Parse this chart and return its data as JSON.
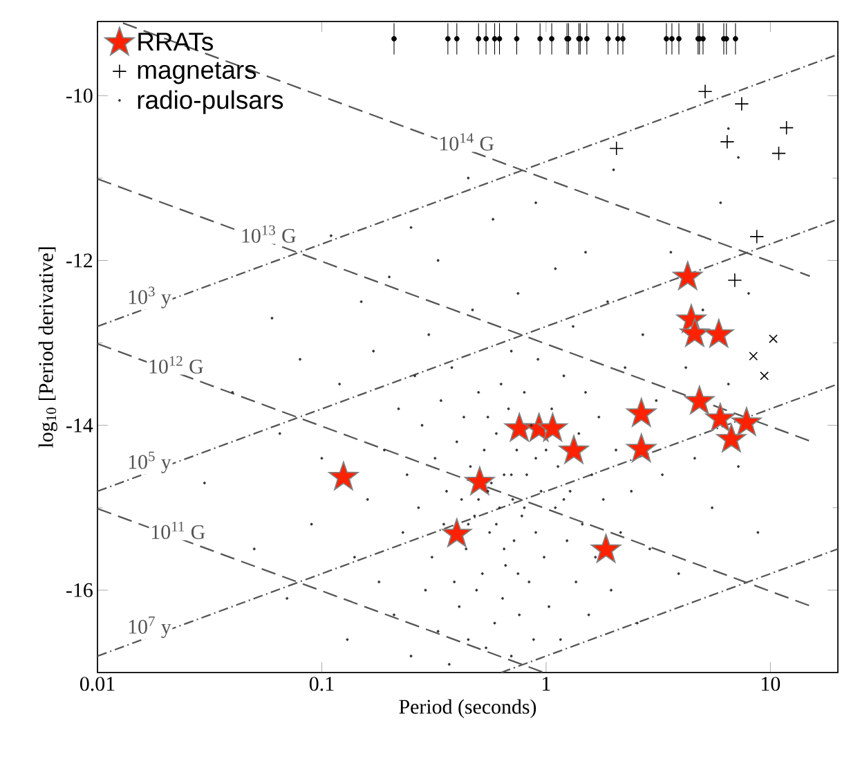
{
  "chart_data": {
    "type": "scatter",
    "xlabel": "Period (seconds)",
    "ylabel": "log$_{10}$ [Period derivative]",
    "log": "x",
    "xlim": [
      0.01,
      20
    ],
    "ylim": [
      -17,
      -9.1
    ],
    "xticks": [
      0.01,
      0.1,
      1,
      10
    ],
    "yticks": [
      -16,
      -14,
      -12,
      -10
    ],
    "legend": "top left",
    "series": [
      {
        "name": "RRATs",
        "marker": "star",
        "color": "#ff2200",
        "x": [
          0.125,
          0.4,
          0.506,
          0.76,
          0.93,
          1.07,
          1.33,
          1.85,
          2.66,
          2.66,
          4.28,
          4.44,
          4.6,
          5.89,
          4.83,
          5.98,
          6.7,
          7.83
        ],
        "values": [
          -14.63,
          -15.32,
          -14.69,
          -14.04,
          -14.04,
          -14.04,
          -14.31,
          -15.51,
          -13.86,
          -14.29,
          -12.2,
          -12.72,
          -12.89,
          -12.9,
          -13.71,
          -13.92,
          -14.17,
          -13.97
        ]
      },
      {
        "name": "magnetars",
        "marker": "cross",
        "color": "#000000",
        "x": [
          5.12,
          7.45,
          6.42,
          11.8,
          10.9,
          2.06,
          8.7,
          6.94
        ],
        "values": [
          -9.95,
          -10.1,
          -10.56,
          -10.39,
          -10.7,
          -10.64,
          -11.71,
          -12.24
        ]
      },
      {
        "name": "radio-pulsars",
        "marker": "circle",
        "color": "#333333",
        "x": [
          0.03,
          0.04,
          0.05,
          0.06,
          0.065,
          0.07,
          0.08,
          0.09,
          0.1,
          0.11,
          0.12,
          0.13,
          0.14,
          0.15,
          0.16,
          0.17,
          0.18,
          0.19,
          0.2,
          0.21,
          0.22,
          0.23,
          0.24,
          0.25,
          0.26,
          0.27,
          0.28,
          0.29,
          0.3,
          0.31,
          0.32,
          0.33,
          0.34,
          0.35,
          0.36,
          0.37,
          0.38,
          0.39,
          0.4,
          0.41,
          0.42,
          0.43,
          0.44,
          0.45,
          0.46,
          0.47,
          0.48,
          0.49,
          0.5,
          0.52,
          0.53,
          0.54,
          0.55,
          0.56,
          0.57,
          0.58,
          0.59,
          0.6,
          0.62,
          0.63,
          0.64,
          0.65,
          0.66,
          0.68,
          0.7,
          0.71,
          0.72,
          0.74,
          0.75,
          0.76,
          0.78,
          0.8,
          0.82,
          0.84,
          0.86,
          0.88,
          0.9,
          0.92,
          0.95,
          0.98,
          1.0,
          1.03,
          1.06,
          1.1,
          1.13,
          1.16,
          1.2,
          1.24,
          1.28,
          1.32,
          1.36,
          1.4,
          1.45,
          1.5,
          1.55,
          1.6,
          1.66,
          1.72,
          1.8,
          1.88,
          1.95,
          2.05,
          2.15,
          2.25,
          2.4,
          2.55,
          2.7,
          2.9,
          3.1,
          3.3,
          3.6,
          3.9,
          4.2,
          4.6,
          5.0,
          5.5,
          6.0,
          6.5,
          7.2,
          8.0,
          8.8,
          0.45,
          0.9,
          0.25,
          1.5,
          0.7,
          1.1,
          0.33,
          2.0,
          6.5,
          7.2,
          0.5,
          0.6,
          0.7,
          0.8,
          0.55,
          0.65,
          0.9,
          1.2,
          0.45,
          0.75
        ],
        "values": [
          -14.7,
          -13.6,
          -15.5,
          -12.7,
          -14.1,
          -16.1,
          -13.2,
          -15.2,
          -14.4,
          -11.7,
          -13.5,
          -16.6,
          -15.6,
          -12.5,
          -14.9,
          -13.1,
          -15.9,
          -14.3,
          -12.2,
          -16.3,
          -13.8,
          -15.3,
          -14.6,
          -16.8,
          -13.4,
          -15.0,
          -14.0,
          -16.0,
          -12.9,
          -15.6,
          -14.4,
          -16.5,
          -13.7,
          -15.2,
          -14.8,
          -16.9,
          -13.3,
          -15.9,
          -14.2,
          -16.2,
          -14.9,
          -13.9,
          -15.5,
          -16.6,
          -14.5,
          -12.6,
          -15.1,
          -16.0,
          -13.6,
          -15.8,
          -14.3,
          -16.7,
          -13.9,
          -15.3,
          -14.7,
          -11.5,
          -16.4,
          -14.1,
          -15.0,
          -13.5,
          -16.1,
          -14.6,
          -15.7,
          -13.8,
          -16.8,
          -14.9,
          -15.4,
          -14.3,
          -12.4,
          -16.3,
          -15.1,
          -13.6,
          -14.6,
          -15.9,
          -14.0,
          -16.6,
          -15.3,
          -13.2,
          -14.8,
          -15.6,
          -14.3,
          -16.2,
          -13.8,
          -15.0,
          -14.5,
          -16.6,
          -13.4,
          -15.4,
          -14.8,
          -12.8,
          -15.9,
          -14.1,
          -15.2,
          -13.6,
          -16.3,
          -14.6,
          -15.6,
          -13.9,
          -14.9,
          -12.5,
          -16.0,
          -14.3,
          -15.3,
          -13.3,
          -14.8,
          -16.4,
          -12.9,
          -15.5,
          -13.7,
          -14.6,
          -11.9,
          -15.8,
          -13.3,
          -14.4,
          -12.6,
          -15.0,
          -11.3,
          -13.5,
          -14.5,
          -12.4,
          -15.3,
          -11.0,
          -11.3,
          -11.6,
          -11.9,
          -13.1,
          -12.1,
          -12.0,
          -10.9,
          -10.4,
          -10.75,
          -14.9,
          -15.2,
          -14.6,
          -15.0,
          -14.8,
          -15.5,
          -14.4,
          -14.9,
          -15.2,
          -15.8
        ]
      },
      {
        "marker": "x",
        "color": "#000000",
        "x": [
          10.3,
          8.4,
          9.4
        ],
        "values": [
          -12.95,
          -13.16,
          -13.4
        ]
      },
      {
        "marker": "none",
        "color": "#000000",
        "x": [
          0.21,
          0.365,
          0.4,
          0.5,
          0.54,
          0.59,
          0.62,
          0.74,
          0.94,
          1.06,
          1.24,
          1.26,
          1.4,
          1.42,
          1.52,
          1.89,
          2.09,
          2.2,
          3.44,
          3.64,
          3.91,
          4.76,
          4.83,
          5.01,
          6.2,
          6.37,
          6.99
        ],
        "values": [
          -9.31,
          -9.31,
          -9.31,
          -9.31,
          -9.31,
          -9.31,
          -9.31,
          -9.31,
          -9.31,
          -9.31,
          -9.31,
          -9.31,
          -9.31,
          -9.31,
          -9.31,
          -9.31,
          -9.31,
          -9.31,
          -9.31,
          -9.31,
          -9.31,
          -9.31,
          -9.31,
          -9.31,
          -9.31,
          -9.31,
          -9.31
        ],
        "errors": [
          0.19,
          0.19,
          0.19,
          0.19,
          0.19,
          0.19,
          0.19,
          0.19,
          0.19,
          0.19,
          0.19,
          0.19,
          0.19,
          0.19,
          0.19,
          0.19,
          0.19,
          0.19,
          0.19,
          0.19,
          0.19,
          0.19,
          0.19,
          0.19,
          0.19,
          0.19,
          0.19
        ]
      },
      {
        "name": "10$^{14}$ G",
        "type": "line",
        "line_style": "dashed",
        "color": "#555555",
        "x": [
          0.013,
          15
        ],
        "values": [
          -9.12,
          -12.19
        ]
      },
      {
        "name": "10$^{13}$ G",
        "type": "line",
        "line_style": "dashed",
        "color": "#555555",
        "x": [
          0.01,
          15
        ],
        "values": [
          -11.01,
          -14.19
        ]
      },
      {
        "name": "10$^{12}$ G",
        "type": "line",
        "line_style": "dashed",
        "color": "#555555",
        "x": [
          0.01,
          15
        ],
        "values": [
          -13.01,
          -16.19
        ]
      },
      {
        "name": "10$^{11}$ G",
        "type": "line",
        "line_style": "dashed",
        "color": "#555555",
        "x": [
          0.01,
          0.98
        ],
        "values": [
          -15.01,
          -17.0
        ]
      },
      {
        "name": "10$^{3}$ y",
        "type": "line",
        "line_style": "dashdot",
        "color": "#555555",
        "x": [
          0.01,
          20
        ],
        "values": [
          -12.8,
          -9.5
        ]
      },
      {
        "name": "10$^{5}$ y",
        "type": "line",
        "line_style": "dashdot",
        "color": "#555555",
        "x": [
          0.01,
          20
        ],
        "values": [
          -14.8,
          -11.5
        ]
      },
      {
        "name": "10$^{7}$ y",
        "type": "line",
        "line_style": "dashdot",
        "color": "#555555",
        "x": [
          0.01,
          20
        ],
        "values": [
          -16.8,
          -13.5
        ]
      },
      {
        "type": "line",
        "line_style": "dashdot",
        "color": "#555555",
        "x": [
          0.63,
          20
        ],
        "values": [
          -17.0,
          -15.5
        ]
      }
    ]
  }
}
